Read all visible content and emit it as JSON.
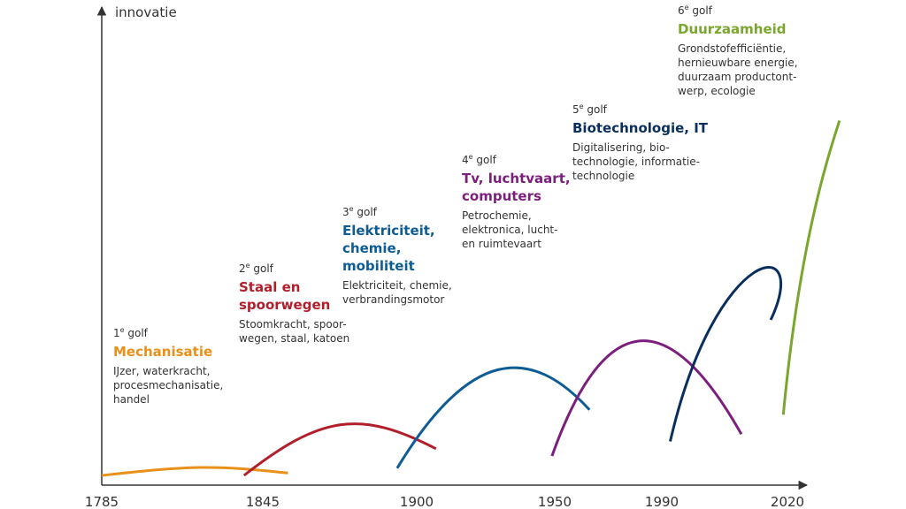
{
  "chart_data": {
    "type": "line",
    "ylabel": "innovatie",
    "x_ticks": [
      "1785",
      "1845",
      "1900",
      "1950",
      "1990",
      "2020"
    ],
    "series": [
      {
        "golf_number": "1",
        "golf_suffix": "e",
        "golf_word": "golf",
        "title_lines": [
          "Mechanisatie"
        ],
        "desc_lines": [
          "IJzer, waterkracht,",
          "procesmechanisatie,",
          "handel"
        ],
        "color": "#E8901A",
        "points": [
          [
            1785,
            0.2
          ],
          [
            1818,
            0.4
          ],
          [
            1826,
            0.42
          ],
          [
            1854,
            0.25
          ]
        ]
      },
      {
        "golf_number": "2",
        "golf_suffix": "e",
        "golf_word": "golf",
        "title_lines": [
          "Staal en",
          "spoorwegen"
        ],
        "desc_lines": [
          "Stoomkracht, spoor-",
          "wegen, staal, katoen"
        ],
        "color": "#B21F2C",
        "points": [
          [
            1838,
            0.2
          ],
          [
            1866,
            1.45
          ],
          [
            1880,
            1.55
          ],
          [
            1907,
            0.75
          ]
        ]
      },
      {
        "golf_number": "3",
        "golf_suffix": "e",
        "golf_word": "golf",
        "title_lines": [
          "Elektriciteit,",
          "chemie,",
          "mobiliteit"
        ],
        "desc_lines": [
          "Elektriciteit, chemie,",
          "verbrandingsmotor"
        ],
        "color": "#0E5C94",
        "points": [
          [
            1893,
            0.35
          ],
          [
            1919,
            2.8
          ],
          [
            1941,
            2.9
          ],
          [
            1963,
            1.55
          ]
        ]
      },
      {
        "golf_number": "4",
        "golf_suffix": "e",
        "golf_word": "golf",
        "title_lines": [
          "Tv, luchtvaart,",
          "computers"
        ],
        "desc_lines": [
          "Petrochemie,",
          "elektronica, lucht-",
          "en ruimtevaart"
        ],
        "color": "#7B1E7C",
        "points": [
          [
            1949,
            0.6
          ],
          [
            1968,
            3.55
          ],
          [
            1991,
            3.8
          ],
          [
            2009,
            1.05
          ]
        ]
      },
      {
        "golf_number": "5",
        "golf_suffix": "e",
        "golf_word": "golf",
        "title_lines": [
          "Biotechnologie, IT"
        ],
        "desc_lines": [
          "Digitalisering, bio-",
          "technologie, informatie-",
          "technologie"
        ],
        "color": "#0A2F5C",
        "points": [
          [
            1992,
            0.9
          ],
          [
            2003,
            5.0
          ],
          [
            2030,
            5.2
          ],
          [
            2016,
            3.4
          ]
        ]
      },
      {
        "golf_number": "6",
        "golf_suffix": "e",
        "golf_word": "golf",
        "title_lines": [
          "Duurzaamheid"
        ],
        "desc_lines": [
          "Grondstofefficiëntie,",
          "hernieuwbare energie,",
          "duurzaam productont-",
          "werp, ecologie"
        ],
        "color": "#7AA62E",
        "points": [
          [
            2019,
            1.45
          ],
          [
            2025,
            5.0
          ],
          [
            2036,
            6.7
          ],
          [
            2041,
            7.5
          ]
        ]
      }
    ]
  }
}
